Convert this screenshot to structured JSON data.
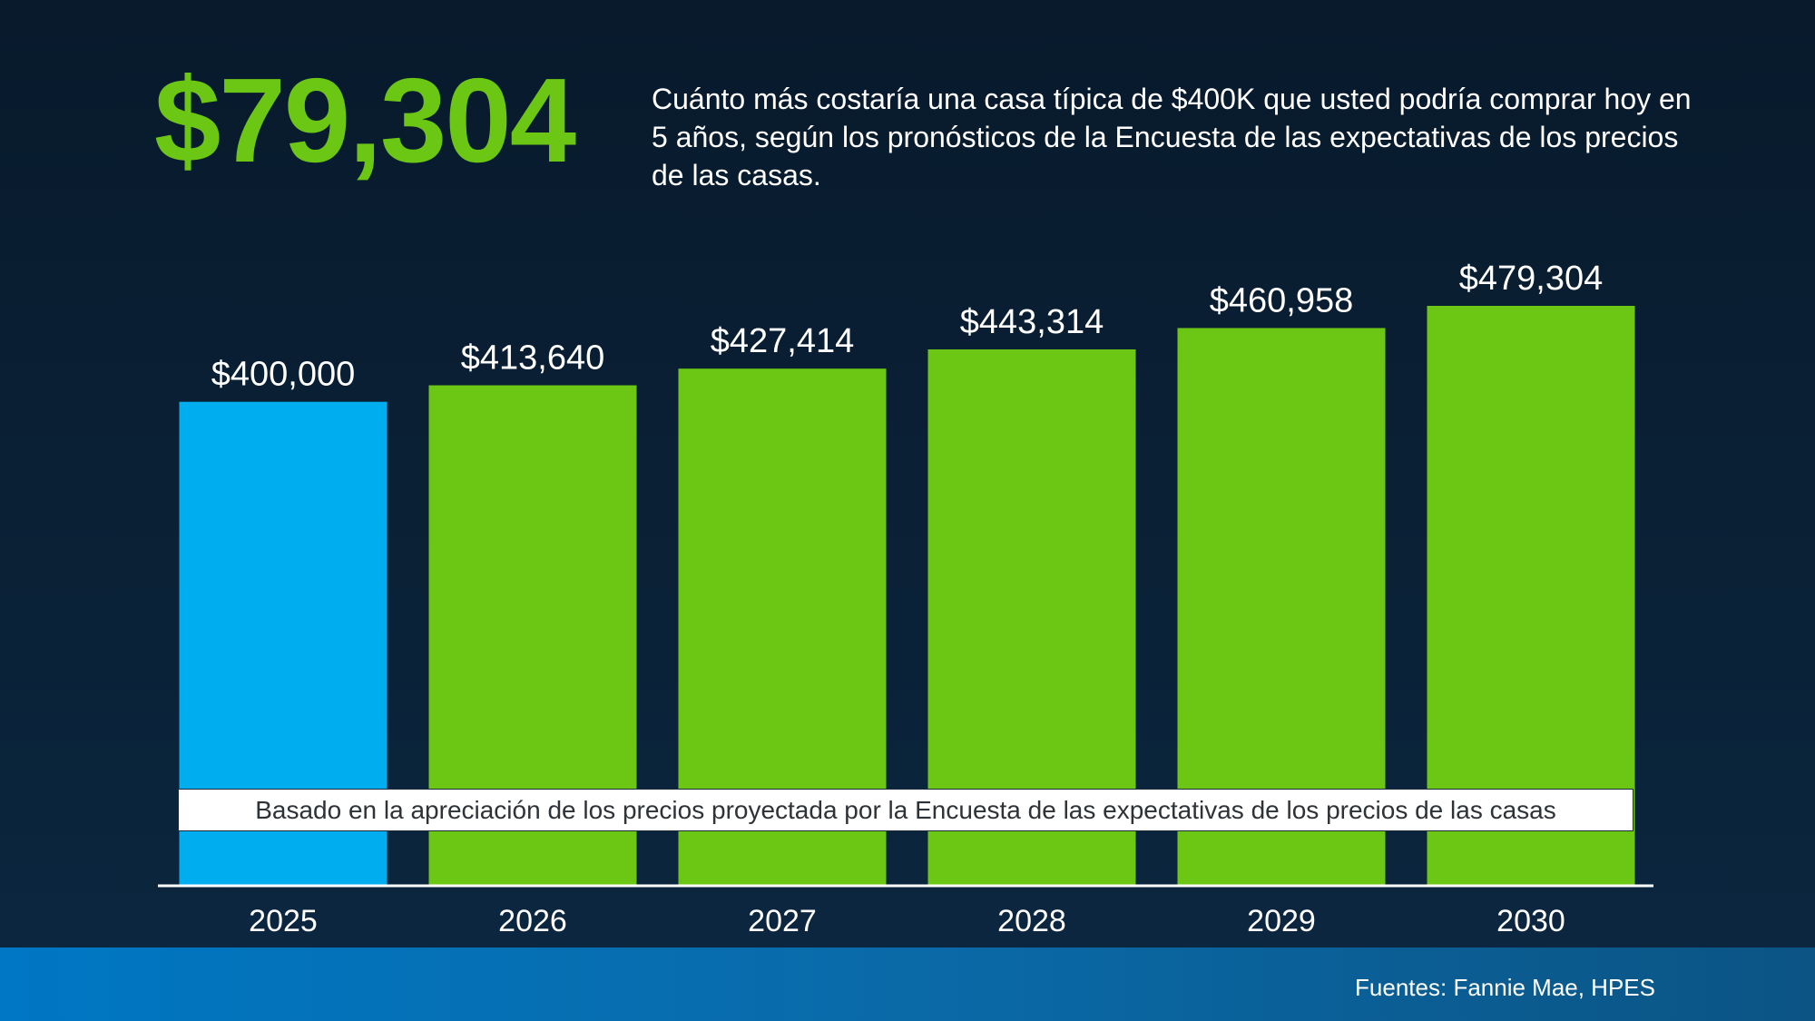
{
  "headline": "$79,304",
  "description": "Cuánto más costaría una casa típica de $400K que usted podría comprar hoy en 5 años, según los pronósticos de la Encuesta de las expectativas de los precios de las casas.",
  "note": "Basado en la apreciación de los precios proyectada por la Encuesta de las expectativas de los precios de las casas",
  "source": "Fuentes: Fannie Mae, HPES",
  "colors": {
    "headline": "#6cc614",
    "current_bar": "#00aeef",
    "projected_bar": "#6cc614",
    "footer": "#0077c4"
  },
  "chart_data": {
    "type": "bar",
    "categories": [
      "2025",
      "2026",
      "2027",
      "2028",
      "2029",
      "2030"
    ],
    "values": [
      400000,
      413640,
      427414,
      443314,
      460958,
      479304
    ],
    "value_labels": [
      "$400,000",
      "$413,640",
      "$427,414",
      "$443,314",
      "$460,958",
      "$479,304"
    ],
    "bar_colors": [
      "#00aeef",
      "#6cc614",
      "#6cc614",
      "#6cc614",
      "#6cc614",
      "#6cc614"
    ],
    "title": "",
    "xlabel": "",
    "ylabel": "",
    "ylim": [
      0,
      479304
    ],
    "grid": false,
    "legend": "none"
  }
}
